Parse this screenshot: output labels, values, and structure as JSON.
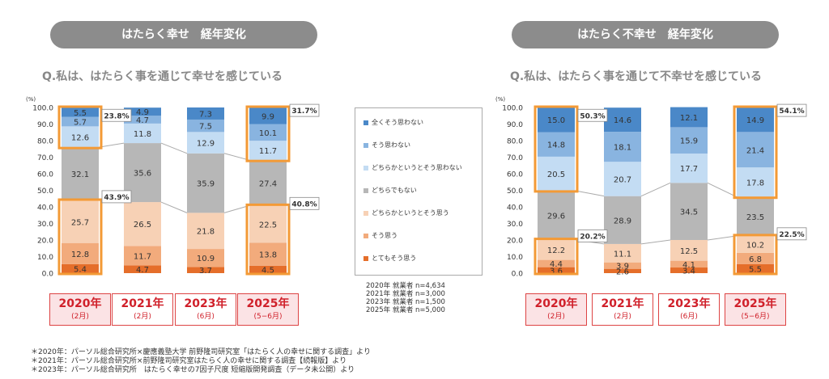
{
  "left": {
    "pill": "はたらく幸せ　経年変化",
    "question": "Q.私は、はたらく事を通じて幸せを感じている",
    "callouts": {
      "c2020_top": "23.8%",
      "c2020_bottom": "43.9%",
      "c2025_top": "31.7%",
      "c2025_bottom": "40.8%"
    }
  },
  "right": {
    "pill": "はたらく不幸せ　経年変化",
    "question": "Q.私は、はたらく事を通じて不幸せを感じている",
    "callouts": {
      "c2020_top": "50.3%",
      "c2020_bottom": "20.2%",
      "c2025_top": "54.1%",
      "c2025_bottom": "22.5%"
    }
  },
  "years": [
    {
      "year": "2020年",
      "period": "(2月)",
      "highlight": true
    },
    {
      "year": "2021年",
      "period": "(2月)",
      "highlight": false
    },
    {
      "year": "2023年",
      "period": "(6月)",
      "highlight": false
    },
    {
      "year": "2025年",
      "period": "(5−6月)",
      "highlight": true
    }
  ],
  "legend": [
    {
      "label": "全くそう思わない",
      "color": "#4a88c8"
    },
    {
      "label": "そう思わない",
      "color": "#89b4e0"
    },
    {
      "label": "どちらかというとそう思わない",
      "color": "#c3dcf3"
    },
    {
      "label": "どちらでもない",
      "color": "#b7b7b7"
    },
    {
      "label": "どちらかというとそう思う",
      "color": "#f7d1b5"
    },
    {
      "label": "そう思う",
      "color": "#f2ab7c"
    },
    {
      "label": "とてもそう思う",
      "color": "#e56e2a"
    }
  ],
  "sample_sizes": [
    "2020年 就業者 n=4,634",
    "2021年 就業者 n=3,000",
    "2023年 就業者 n=1,500",
    "2025年 就業者 n=5,000"
  ],
  "footnotes": [
    "＊2020年：パーソル総合研究所×慶應義塾大学 前野隆司研究室「はたらく人の幸せに関する調査」より",
    "＊2021年：パーソル総合研究所×前野隆司研究室はたらく人の幸せに関する調査【続報版】より",
    "＊2023年：パーソル総合研究所　はたらく幸せの7因子尺度  短縮版開発調査（データ未公開）より"
  ],
  "chart_data": [
    {
      "type": "bar",
      "stacked": true,
      "ylabel": "(%)",
      "ylim": [
        0,
        100
      ],
      "yticks": [
        "0.0",
        "10.0",
        "20.0",
        "30.0",
        "40.0",
        "50.0",
        "60.0",
        "70.0",
        "80.0",
        "90.0",
        "100.0"
      ],
      "categories": [
        "2020年",
        "2021年",
        "2023年",
        "2025年"
      ],
      "series": [
        {
          "name": "とてもそう思う",
          "color": "#e56e2a",
          "values": [
            5.4,
            4.7,
            3.7,
            4.5
          ]
        },
        {
          "name": "そう思う",
          "color": "#f2ab7c",
          "values": [
            12.8,
            11.7,
            10.9,
            13.8
          ]
        },
        {
          "name": "どちらかというとそう思う",
          "color": "#f7d1b5",
          "values": [
            25.7,
            26.5,
            21.8,
            22.5
          ]
        },
        {
          "name": "どちらでもない",
          "color": "#b7b7b7",
          "values": [
            32.1,
            35.6,
            35.9,
            27.4
          ]
        },
        {
          "name": "どちらかというとそう思わない",
          "color": "#c3dcf3",
          "values": [
            12.6,
            11.8,
            12.9,
            11.7
          ]
        },
        {
          "name": "そう思わない",
          "color": "#89b4e0",
          "values": [
            5.7,
            4.7,
            7.5,
            10.1
          ]
        },
        {
          "name": "全くそう思わない",
          "color": "#4a88c8",
          "values": [
            5.5,
            4.9,
            7.3,
            9.9
          ]
        }
      ]
    },
    {
      "type": "bar",
      "stacked": true,
      "ylabel": "(%)",
      "ylim": [
        0,
        100
      ],
      "yticks": [
        "0.0",
        "10.0",
        "20.0",
        "30.0",
        "40.0",
        "50.0",
        "60.0",
        "70.0",
        "80.0",
        "90.0",
        "100.0"
      ],
      "categories": [
        "2020年",
        "2021年",
        "2023年",
        "2025年"
      ],
      "series": [
        {
          "name": "とてもそう思う",
          "color": "#e56e2a",
          "values": [
            3.6,
            2.6,
            3.4,
            5.5
          ]
        },
        {
          "name": "そう思う",
          "color": "#f2ab7c",
          "values": [
            4.4,
            3.9,
            4.1,
            6.8
          ]
        },
        {
          "name": "どちらかというとそう思う",
          "color": "#f7d1b5",
          "values": [
            12.2,
            11.1,
            12.5,
            10.2
          ]
        },
        {
          "name": "どちらでもない",
          "color": "#b7b7b7",
          "values": [
            29.6,
            28.9,
            34.5,
            23.5
          ]
        },
        {
          "name": "どちらかというとそう思わない",
          "color": "#c3dcf3",
          "values": [
            20.5,
            20.7,
            17.7,
            17.8
          ]
        },
        {
          "name": "そう思わない",
          "color": "#89b4e0",
          "values": [
            14.8,
            18.1,
            15.9,
            21.4
          ]
        },
        {
          "name": "全くそう思わない",
          "color": "#4a88c8",
          "values": [
            15.0,
            14.6,
            12.1,
            14.9
          ]
        }
      ]
    }
  ]
}
